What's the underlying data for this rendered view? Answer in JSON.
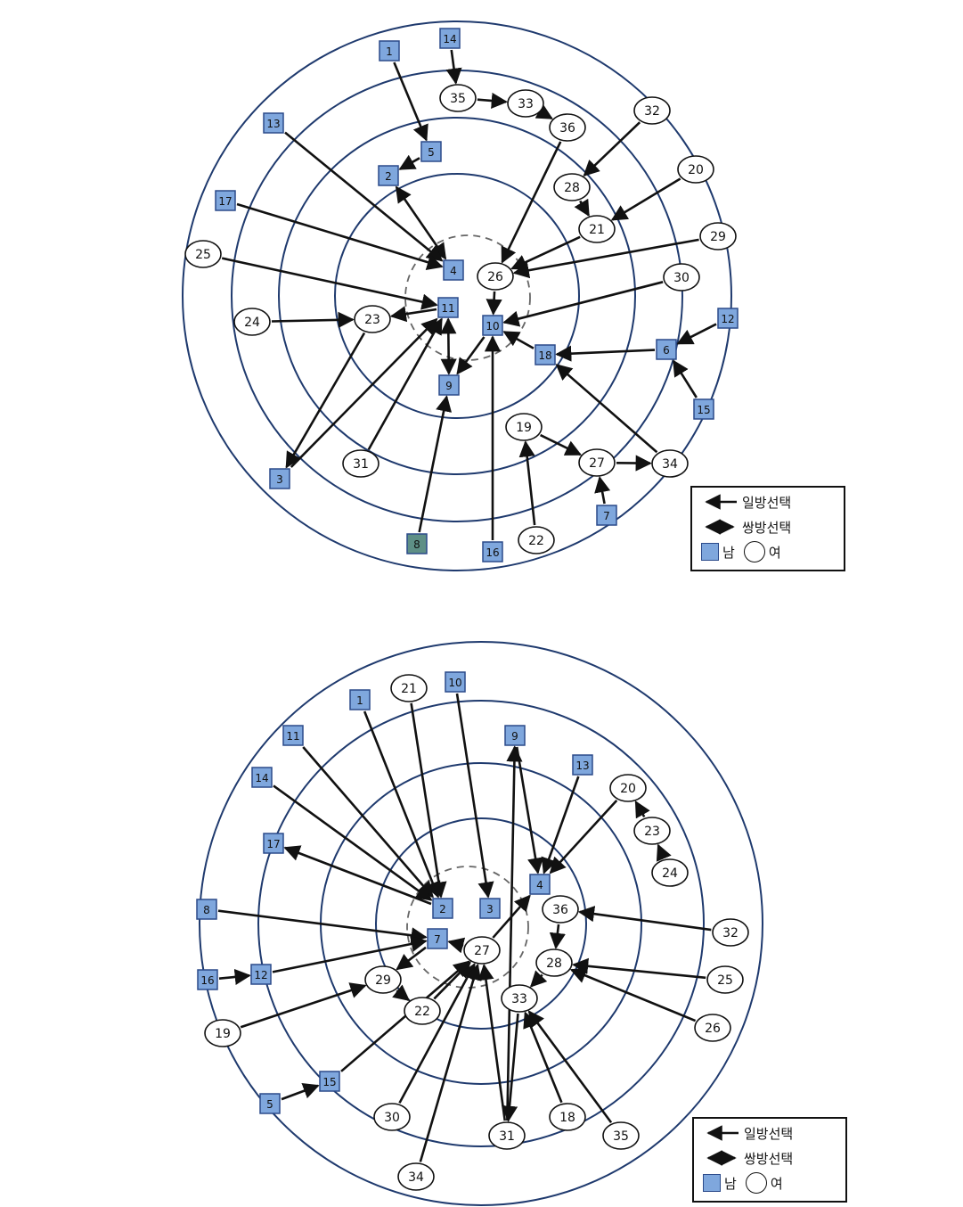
{
  "colors": {
    "ring": "#1f3a6e",
    "male_fill": "#7fa7dd",
    "male_border": "#2b4a8a",
    "male_dark_fill": "#5e8f86",
    "female_fill": "#ffffff",
    "line": "#111111",
    "dash": "#666666"
  },
  "sociograms": [
    {
      "id": "top",
      "nodes": [
        {
          "id": "1",
          "type": "m"
        },
        {
          "id": "14",
          "type": "m"
        },
        {
          "id": "35",
          "type": "f"
        },
        {
          "id": "33",
          "type": "f"
        },
        {
          "id": "36",
          "type": "f"
        },
        {
          "id": "32",
          "type": "f"
        },
        {
          "id": "13",
          "type": "m"
        },
        {
          "id": "5",
          "type": "m"
        },
        {
          "id": "2",
          "type": "m"
        },
        {
          "id": "28",
          "type": "f"
        },
        {
          "id": "20",
          "type": "f"
        },
        {
          "id": "17",
          "type": "m"
        },
        {
          "id": "21",
          "type": "f"
        },
        {
          "id": "29",
          "type": "f"
        },
        {
          "id": "25",
          "type": "f"
        },
        {
          "id": "4",
          "type": "m"
        },
        {
          "id": "26",
          "type": "f"
        },
        {
          "id": "30",
          "type": "f"
        },
        {
          "id": "11",
          "type": "m"
        },
        {
          "id": "24",
          "type": "f"
        },
        {
          "id": "23",
          "type": "f"
        },
        {
          "id": "10",
          "type": "m"
        },
        {
          "id": "12",
          "type": "m"
        },
        {
          "id": "6",
          "type": "m"
        },
        {
          "id": "18",
          "type": "m"
        },
        {
          "id": "9",
          "type": "m"
        },
        {
          "id": "15",
          "type": "m"
        },
        {
          "id": "19",
          "type": "f"
        },
        {
          "id": "31",
          "type": "f"
        },
        {
          "id": "27",
          "type": "f"
        },
        {
          "id": "34",
          "type": "f"
        },
        {
          "id": "3",
          "type": "m"
        },
        {
          "id": "7",
          "type": "m"
        },
        {
          "id": "8",
          "type": "m"
        },
        {
          "id": "16",
          "type": "m"
        },
        {
          "id": "22",
          "type": "f"
        }
      ],
      "edges": [
        {
          "from": "1",
          "to": "5",
          "kind": "one"
        },
        {
          "from": "14",
          "to": "35",
          "kind": "one"
        },
        {
          "from": "35",
          "to": "33",
          "kind": "one"
        },
        {
          "from": "33",
          "to": "36",
          "kind": "one"
        },
        {
          "from": "36",
          "to": "26",
          "kind": "one"
        },
        {
          "from": "32",
          "to": "28",
          "kind": "one"
        },
        {
          "from": "28",
          "to": "21",
          "kind": "one"
        },
        {
          "from": "20",
          "to": "21",
          "kind": "one"
        },
        {
          "from": "21",
          "to": "26",
          "kind": "one"
        },
        {
          "from": "29",
          "to": "26",
          "kind": "one"
        },
        {
          "from": "26",
          "to": "10",
          "kind": "one"
        },
        {
          "from": "30",
          "to": "10",
          "kind": "one"
        },
        {
          "from": "5",
          "to": "2",
          "kind": "one"
        },
        {
          "from": "2",
          "to": "4",
          "kind": "both"
        },
        {
          "from": "13",
          "to": "4",
          "kind": "one"
        },
        {
          "from": "17",
          "to": "4",
          "kind": "one"
        },
        {
          "from": "25",
          "to": "11",
          "kind": "one"
        },
        {
          "from": "11",
          "to": "23",
          "kind": "one"
        },
        {
          "from": "24",
          "to": "23",
          "kind": "one"
        },
        {
          "from": "23",
          "to": "3",
          "kind": "one"
        },
        {
          "from": "3",
          "to": "11",
          "kind": "one"
        },
        {
          "from": "31",
          "to": "11",
          "kind": "one"
        },
        {
          "from": "11",
          "to": "9",
          "kind": "both"
        },
        {
          "from": "10",
          "to": "9",
          "kind": "one"
        },
        {
          "from": "8",
          "to": "9",
          "kind": "one"
        },
        {
          "from": "16",
          "to": "10",
          "kind": "one"
        },
        {
          "from": "18",
          "to": "10",
          "kind": "one"
        },
        {
          "from": "6",
          "to": "18",
          "kind": "one"
        },
        {
          "from": "12",
          "to": "6",
          "kind": "one"
        },
        {
          "from": "15",
          "to": "6",
          "kind": "one"
        },
        {
          "from": "34",
          "to": "18",
          "kind": "one"
        },
        {
          "from": "19",
          "to": "27",
          "kind": "one"
        },
        {
          "from": "27",
          "to": "34",
          "kind": "one"
        },
        {
          "from": "7",
          "to": "27",
          "kind": "one"
        },
        {
          "from": "22",
          "to": "19",
          "kind": "one"
        }
      ]
    },
    {
      "id": "bottom",
      "nodes": [
        {
          "id": "21",
          "type": "f"
        },
        {
          "id": "10",
          "type": "m"
        },
        {
          "id": "1",
          "type": "m"
        },
        {
          "id": "11",
          "type": "m"
        },
        {
          "id": "9",
          "type": "m"
        },
        {
          "id": "13",
          "type": "m"
        },
        {
          "id": "14",
          "type": "m"
        },
        {
          "id": "20",
          "type": "f"
        },
        {
          "id": "23",
          "type": "f"
        },
        {
          "id": "24",
          "type": "f"
        },
        {
          "id": "17",
          "type": "m"
        },
        {
          "id": "4",
          "type": "m"
        },
        {
          "id": "8",
          "type": "m"
        },
        {
          "id": "2",
          "type": "m"
        },
        {
          "id": "3",
          "type": "m"
        },
        {
          "id": "36",
          "type": "f"
        },
        {
          "id": "32",
          "type": "f"
        },
        {
          "id": "7",
          "type": "m"
        },
        {
          "id": "27",
          "type": "f"
        },
        {
          "id": "28",
          "type": "f"
        },
        {
          "id": "16",
          "type": "m"
        },
        {
          "id": "12",
          "type": "m"
        },
        {
          "id": "29",
          "type": "f"
        },
        {
          "id": "25",
          "type": "f"
        },
        {
          "id": "33",
          "type": "f"
        },
        {
          "id": "22",
          "type": "f"
        },
        {
          "id": "19",
          "type": "f"
        },
        {
          "id": "26",
          "type": "f"
        },
        {
          "id": "15",
          "type": "m"
        },
        {
          "id": "5",
          "type": "m"
        },
        {
          "id": "30",
          "type": "f"
        },
        {
          "id": "18",
          "type": "f"
        },
        {
          "id": "31",
          "type": "f"
        },
        {
          "id": "35",
          "type": "f"
        },
        {
          "id": "34",
          "type": "f"
        }
      ],
      "edges": [
        {
          "from": "1",
          "to": "2",
          "kind": "one"
        },
        {
          "from": "21",
          "to": "2",
          "kind": "one"
        },
        {
          "from": "11",
          "to": "2",
          "kind": "one"
        },
        {
          "from": "14",
          "to": "2",
          "kind": "one"
        },
        {
          "from": "2",
          "to": "17",
          "kind": "one"
        },
        {
          "from": "10",
          "to": "3",
          "kind": "one"
        },
        {
          "from": "9",
          "to": "4",
          "kind": "one"
        },
        {
          "from": "13",
          "to": "4",
          "kind": "one"
        },
        {
          "from": "20",
          "to": "4",
          "kind": "one"
        },
        {
          "from": "24",
          "to": "23",
          "kind": "one"
        },
        {
          "from": "23",
          "to": "20",
          "kind": "one"
        },
        {
          "from": "8",
          "to": "7",
          "kind": "one"
        },
        {
          "from": "27",
          "to": "7",
          "kind": "one"
        },
        {
          "from": "27",
          "to": "4",
          "kind": "one"
        },
        {
          "from": "32",
          "to": "36",
          "kind": "one"
        },
        {
          "from": "36",
          "to": "28",
          "kind": "one"
        },
        {
          "from": "28",
          "to": "33",
          "kind": "one"
        },
        {
          "from": "25",
          "to": "28",
          "kind": "one"
        },
        {
          "from": "26",
          "to": "28",
          "kind": "one"
        },
        {
          "from": "16",
          "to": "12",
          "kind": "one"
        },
        {
          "from": "12",
          "to": "7",
          "kind": "one"
        },
        {
          "from": "19",
          "to": "29",
          "kind": "one"
        },
        {
          "from": "7",
          "to": "29",
          "kind": "one"
        },
        {
          "from": "29",
          "to": "22",
          "kind": "one"
        },
        {
          "from": "22",
          "to": "27",
          "kind": "one"
        },
        {
          "from": "5",
          "to": "15",
          "kind": "one"
        },
        {
          "from": "15",
          "to": "27",
          "kind": "one"
        },
        {
          "from": "30",
          "to": "27",
          "kind": "one"
        },
        {
          "from": "34",
          "to": "27",
          "kind": "one"
        },
        {
          "from": "31",
          "to": "27",
          "kind": "one"
        },
        {
          "from": "31",
          "to": "9",
          "kind": "one"
        },
        {
          "from": "33",
          "to": "31",
          "kind": "one"
        },
        {
          "from": "18",
          "to": "33",
          "kind": "one"
        },
        {
          "from": "35",
          "to": "33",
          "kind": "one"
        }
      ]
    }
  ],
  "legend": {
    "one_way": "일방선택",
    "two_way": "쌍방선택",
    "male": "남",
    "female": "여"
  }
}
